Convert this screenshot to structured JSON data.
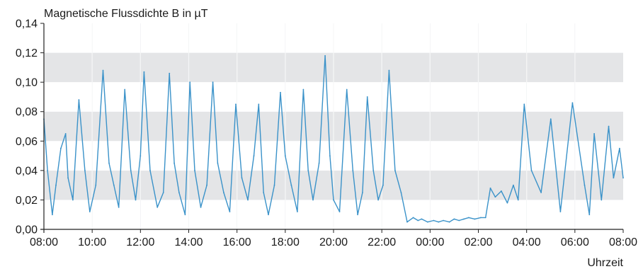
{
  "chart_data": {
    "type": "line",
    "title": "",
    "ylabel": "Magnetische Flussdichte B in µT",
    "xlabel": "Uhrzeit",
    "x_ticks": [
      "08:00",
      "10:00",
      "12:00",
      "14:00",
      "16:00",
      "18:00",
      "20:00",
      "22:00",
      "00:00",
      "02:00",
      "04:00",
      "06:00",
      "08:00"
    ],
    "y_ticks": [
      "0,00",
      "0,02",
      "0,04",
      "0,06",
      "0,08",
      "0,10",
      "0,12",
      "0,14"
    ],
    "ylim": [
      0,
      0.14
    ],
    "xlim_hours": [
      0,
      24
    ],
    "grid": "alternating horizontal bands with vertical gridlines",
    "legend": "none",
    "colors": {
      "series": "#3a92c9",
      "band": "#e4e5e7",
      "grid": "#ffffff",
      "axis": "#222222"
    },
    "series": [
      {
        "name": "",
        "x_hours": [
          0.0,
          0.15,
          0.35,
          0.5,
          0.7,
          0.9,
          1.0,
          1.2,
          1.45,
          1.7,
          1.9,
          2.15,
          2.45,
          2.7,
          2.9,
          3.1,
          3.35,
          3.6,
          3.8,
          4.0,
          4.15,
          4.4,
          4.7,
          4.95,
          5.2,
          5.4,
          5.6,
          5.85,
          6.05,
          6.25,
          6.5,
          6.75,
          7.0,
          7.2,
          7.45,
          7.7,
          7.95,
          8.2,
          8.45,
          8.7,
          8.9,
          9.1,
          9.3,
          9.55,
          9.8,
          10.0,
          10.25,
          10.5,
          10.75,
          10.95,
          11.15,
          11.4,
          11.65,
          11.85,
          12.0,
          12.25,
          12.55,
          12.8,
          13.0,
          13.2,
          13.4,
          13.65,
          13.85,
          14.05,
          14.3,
          14.55,
          14.8,
          15.05,
          15.3,
          15.5,
          15.65,
          15.9,
          16.15,
          16.35,
          16.55,
          16.8,
          17.0,
          17.2,
          17.4,
          17.6,
          17.85,
          18.1,
          18.3,
          18.5,
          18.7,
          18.95,
          19.2,
          19.45,
          19.65,
          19.9,
          20.2,
          20.6,
          21.0,
          21.4,
          21.9,
          22.4,
          22.6,
          22.8,
          23.1,
          23.4,
          23.6,
          23.85,
          24.0
        ],
        "values": [
          0.075,
          0.04,
          0.01,
          0.03,
          0.055,
          0.065,
          0.035,
          0.02,
          0.088,
          0.04,
          0.012,
          0.03,
          0.108,
          0.045,
          0.03,
          0.015,
          0.095,
          0.04,
          0.02,
          0.05,
          0.107,
          0.04,
          0.015,
          0.025,
          0.106,
          0.045,
          0.025,
          0.01,
          0.1,
          0.04,
          0.015,
          0.03,
          0.1,
          0.045,
          0.025,
          0.012,
          0.085,
          0.035,
          0.02,
          0.05,
          0.085,
          0.025,
          0.01,
          0.03,
          0.093,
          0.05,
          0.03,
          0.012,
          0.095,
          0.04,
          0.02,
          0.045,
          0.118,
          0.05,
          0.02,
          0.012,
          0.095,
          0.04,
          0.01,
          0.025,
          0.09,
          0.04,
          0.02,
          0.03,
          0.108,
          0.04,
          0.025,
          0.005,
          0.008,
          0.006,
          0.007,
          0.005,
          0.006,
          0.005,
          0.006,
          0.005,
          0.007,
          0.006,
          0.007,
          0.008,
          0.007,
          0.008,
          0.008,
          0.028,
          0.022,
          0.026,
          0.018,
          0.03,
          0.02,
          0.085,
          0.04,
          0.025,
          0.075,
          0.012,
          0.086,
          0.03,
          0.01,
          0.065,
          0.02,
          0.07,
          0.035,
          0.055,
          0.035
        ]
      }
    ]
  }
}
